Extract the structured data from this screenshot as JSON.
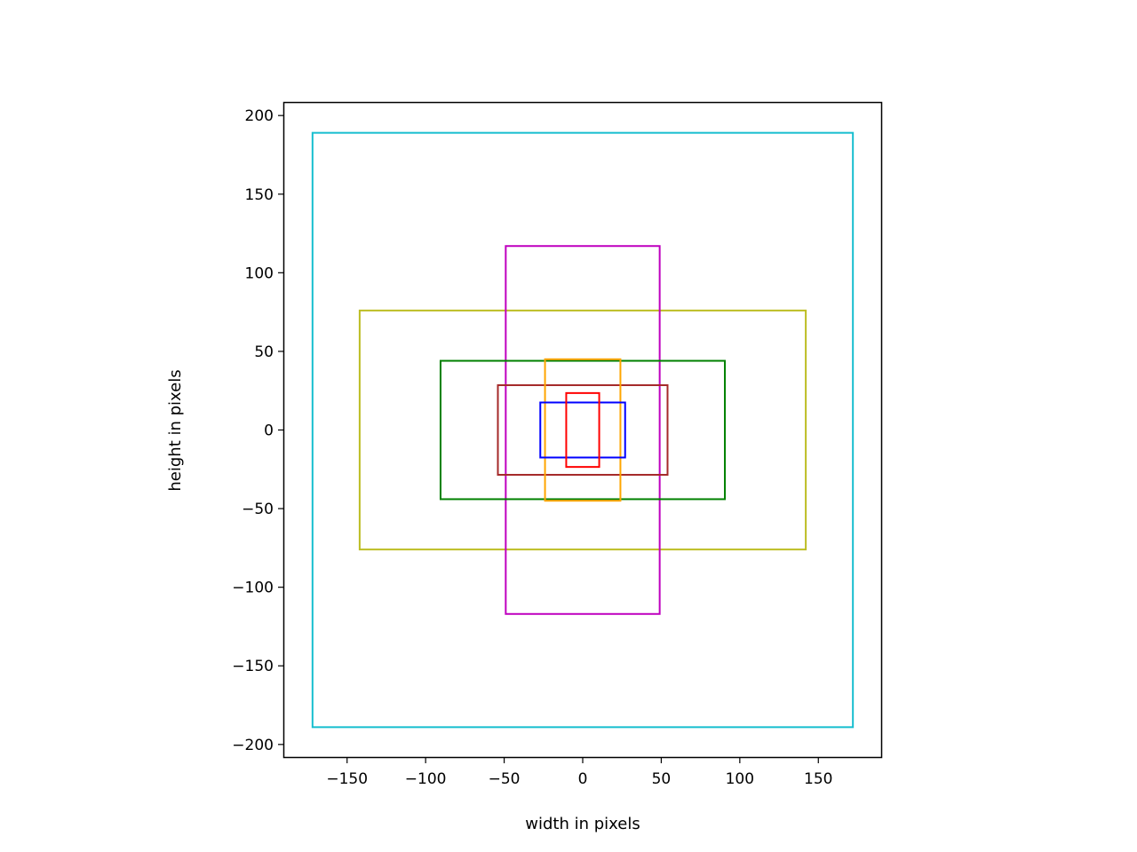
{
  "chart_data": {
    "type": "rectangles",
    "title": "",
    "xlabel": "width in pixels",
    "ylabel": "height in pixels",
    "xlim": [
      -190,
      190
    ],
    "ylim": [
      -208,
      208
    ],
    "xticks": [
      {
        "value": -150,
        "label": "−150"
      },
      {
        "value": -100,
        "label": "−100"
      },
      {
        "value": -50,
        "label": "−50"
      },
      {
        "value": 0,
        "label": "0"
      },
      {
        "value": 50,
        "label": "50"
      },
      {
        "value": 100,
        "label": "100"
      },
      {
        "value": 150,
        "label": "150"
      }
    ],
    "yticks": [
      {
        "value": 200,
        "label": "200"
      },
      {
        "value": 150,
        "label": "150"
      },
      {
        "value": 100,
        "label": "100"
      },
      {
        "value": 50,
        "label": "50"
      },
      {
        "value": 0,
        "label": "0"
      },
      {
        "value": -50,
        "label": "−50"
      },
      {
        "value": -100,
        "label": "−100"
      },
      {
        "value": -150,
        "label": "−150"
      },
      {
        "value": -200,
        "label": "−200"
      }
    ],
    "grid": false,
    "legend": false,
    "rectangles": [
      {
        "color": "#17becf",
        "width": 344,
        "height": 378
      },
      {
        "color": "#bcbd22",
        "width": 284,
        "height": 152
      },
      {
        "color": "#bf00bf",
        "width": 98,
        "height": 234
      },
      {
        "color": "#008000",
        "width": 181,
        "height": 88
      },
      {
        "color": "#a52a2a",
        "width": 108,
        "height": 57
      },
      {
        "color": "#ffa500",
        "width": 48,
        "height": 90
      },
      {
        "color": "#0000ff",
        "width": 54,
        "height": 35
      },
      {
        "color": "#ff0000",
        "width": 21,
        "height": 47
      }
    ]
  }
}
